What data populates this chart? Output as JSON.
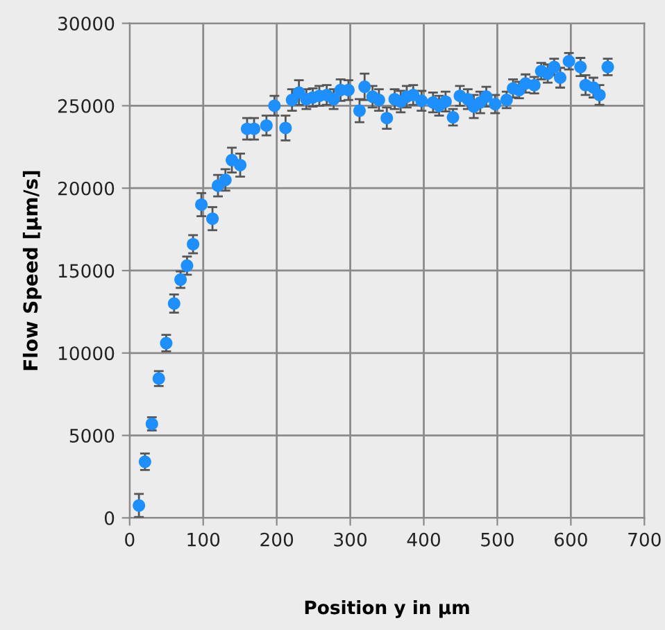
{
  "chart_data": {
    "type": "scatter",
    "xlabel": "Position y in µm",
    "ylabel": "Flow Speed [µm/s]",
    "x": [
      12.6,
      20.8,
      30.2,
      39.6,
      49.7,
      60.4,
      69.2,
      78,
      86.2,
      97.5,
      112.6,
      120.1,
      130.2,
      139,
      150.3,
      159.7,
      169.2,
      186,
      196.9,
      212,
      220.8,
      230.2,
      240.3,
      249,
      257.9,
      268,
      277.4,
      286.8,
      297.5,
      312.6,
      319.5,
      330.3,
      339,
      349.7,
      360.4,
      368.6,
      376.8,
      385.6,
      396.9,
      412.6,
      420.8,
      429.6,
      439.7,
      449.1,
      459.8,
      468,
      476.8,
      485,
      497,
      512.6,
      521.4,
      529.6,
      538.4,
      550.3,
      559.7,
      568.5,
      577.3,
      585.5,
      597.4,
      613.1,
      620,
      630.7,
      638.9,
      650.2
    ],
    "series": [
      {
        "color": "#1e8fff",
        "values": [
          750,
          3400,
          5700,
          8450,
          10600,
          13000,
          14450,
          15300,
          16600,
          19000,
          18150,
          20150,
          20500,
          21700,
          21400,
          23600,
          23600,
          23800,
          25000,
          23650,
          25350,
          25800,
          25400,
          25500,
          25600,
          25650,
          25400,
          25950,
          25950,
          24700,
          26150,
          25550,
          25350,
          24250,
          25400,
          25250,
          25550,
          25650,
          25300,
          25200,
          25000,
          25250,
          24300,
          25600,
          25400,
          24950,
          25200,
          25550,
          25100,
          25350,
          26050,
          25950,
          26350,
          26250,
          27100,
          26950,
          27350,
          26700,
          27700,
          27350,
          26250,
          26100,
          25650,
          27350
        ],
        "errors": [
          700,
          500,
          400,
          450,
          500,
          550,
          500,
          550,
          550,
          700,
          700,
          650,
          650,
          750,
          700,
          650,
          650,
          600,
          600,
          750,
          650,
          750,
          600,
          550,
          600,
          600,
          600,
          650,
          600,
          700,
          800,
          650,
          650,
          650,
          600,
          650,
          650,
          600,
          600,
          600,
          600,
          600,
          500,
          600,
          600,
          700,
          650,
          600,
          550,
          500,
          550,
          500,
          550,
          500,
          500,
          550,
          500,
          600,
          500,
          550,
          600,
          600,
          600,
          500
        ]
      }
    ],
    "xlim": [
      0,
      700
    ],
    "xticks": [
      0,
      100,
      200,
      300,
      400,
      500,
      600,
      700
    ],
    "ylim": [
      0,
      30000
    ],
    "yticks": [
      0,
      5000,
      10000,
      15000,
      20000,
      25000,
      30000
    ],
    "grid": true,
    "marker": "circle",
    "legend": false
  }
}
